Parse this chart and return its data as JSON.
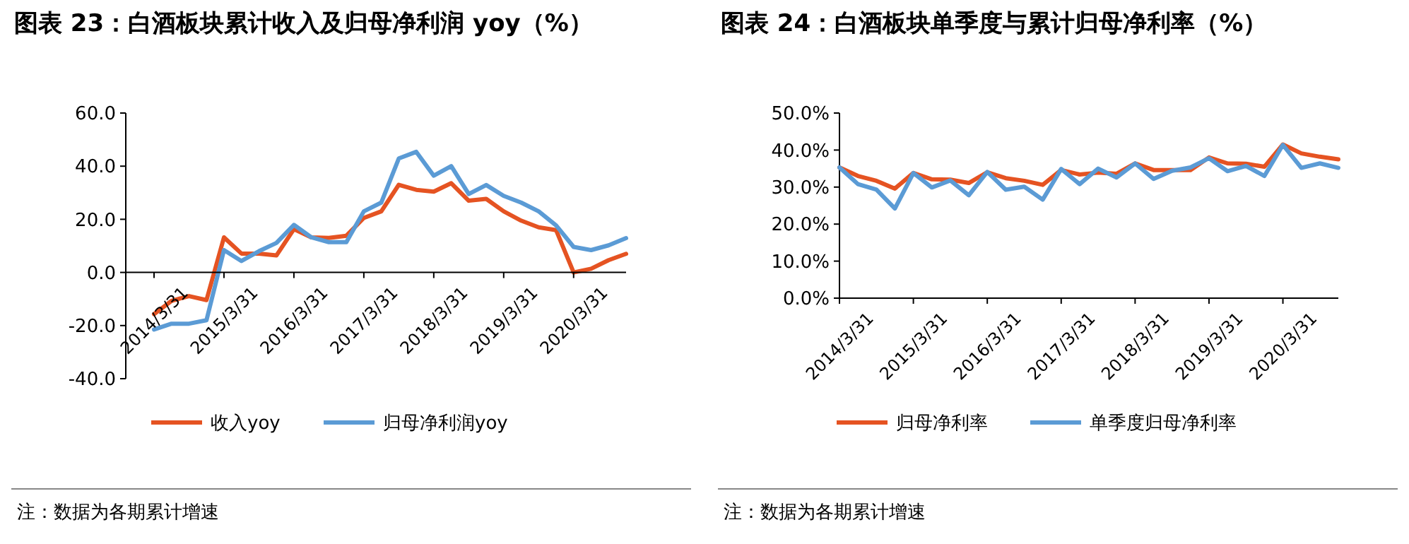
{
  "chart_data": [
    {
      "type": "line",
      "title": "图表 23：白酒板块累计收入及归母净利润 yoy（%）",
      "categories": [
        "2014/3/31",
        null,
        null,
        null,
        "2015/3/31",
        null,
        null,
        null,
        "2016/3/31",
        null,
        null,
        null,
        "2017/3/31",
        null,
        null,
        null,
        "2018/3/31",
        null,
        null,
        null,
        "2019/3/31",
        null,
        null,
        null,
        "2020/3/31",
        null,
        null,
        null
      ],
      "series": [
        {
          "name": "收入yoy",
          "color": "#e55322",
          "values": [
            -15.7,
            -10.7,
            -8.9,
            -10.4,
            13.2,
            7.1,
            7.1,
            6.4,
            16.3,
            13.2,
            13.0,
            13.8,
            20.5,
            23.0,
            33.0,
            31.1,
            30.4,
            33.6,
            27.0,
            27.7,
            23.0,
            19.5,
            17.0,
            15.9,
            0.0,
            1.4,
            4.6,
            7.0
          ]
        },
        {
          "name": "归母净利润yoy",
          "color": "#5b9bd5",
          "values": [
            -21.5,
            -19.3,
            -19.3,
            -18.0,
            8.4,
            4.3,
            8.0,
            11.1,
            17.9,
            13.2,
            11.4,
            11.4,
            23.0,
            26.3,
            42.9,
            45.4,
            36.4,
            40.0,
            29.5,
            32.9,
            28.8,
            26.3,
            23.0,
            17.7,
            9.6,
            8.4,
            10.2,
            12.9
          ]
        }
      ],
      "ylim": [
        -40,
        60
      ],
      "yticks": [
        {
          "value": -40,
          "label": "-40.0"
        },
        {
          "value": -20,
          "label": "-20.0"
        },
        {
          "value": 0,
          "label": "0.0"
        },
        {
          "value": 20,
          "label": "20.0"
        },
        {
          "value": 40,
          "label": "40.0"
        },
        {
          "value": 60,
          "label": "60.0"
        }
      ],
      "legend": "bottom",
      "grid": false,
      "annotations": [
        "注：数据为各期累计增速"
      ]
    },
    {
      "type": "line",
      "title": "图表 24：白酒板块单季度与累计归母净利率（%）",
      "categories": [
        "2014/3/31",
        null,
        null,
        null,
        "2015/3/31",
        null,
        null,
        null,
        "2016/3/31",
        null,
        null,
        null,
        "2017/3/31",
        null,
        null,
        null,
        "2018/3/31",
        null,
        null,
        null,
        "2019/3/31",
        null,
        null,
        null,
        "2020/3/31",
        null,
        null,
        null
      ],
      "series": [
        {
          "name": "归母净利率",
          "color": "#e55322",
          "values": [
            35.3,
            33.0,
            31.7,
            29.6,
            33.8,
            32.1,
            32.0,
            31.1,
            34.0,
            32.4,
            31.7,
            30.6,
            34.6,
            33.4,
            33.9,
            33.6,
            36.4,
            34.6,
            34.6,
            34.6,
            38.0,
            36.4,
            36.3,
            35.5,
            41.5,
            39.1,
            38.2,
            37.5
          ]
        },
        {
          "name": "单季度归母净利率",
          "color": "#5b9bd5",
          "values": [
            35.3,
            30.8,
            29.3,
            24.2,
            33.8,
            29.9,
            31.8,
            27.8,
            34.1,
            29.3,
            30.1,
            26.6,
            34.9,
            30.8,
            35.0,
            32.6,
            36.4,
            32.2,
            34.4,
            35.3,
            37.8,
            34.3,
            35.7,
            33.0,
            41.4,
            35.2,
            36.4,
            35.2
          ]
        }
      ],
      "ylim": [
        0,
        50
      ],
      "yticks": [
        {
          "value": 0,
          "label": "0.0%"
        },
        {
          "value": 10,
          "label": "10.0%"
        },
        {
          "value": 20,
          "label": "20.0%"
        },
        {
          "value": 30,
          "label": "30.0%"
        },
        {
          "value": 40,
          "label": "40.0%"
        },
        {
          "value": 50,
          "label": "50.0%"
        }
      ],
      "legend": "bottom",
      "grid": false,
      "annotations": [
        "注：数据为各期累计增速"
      ]
    }
  ]
}
